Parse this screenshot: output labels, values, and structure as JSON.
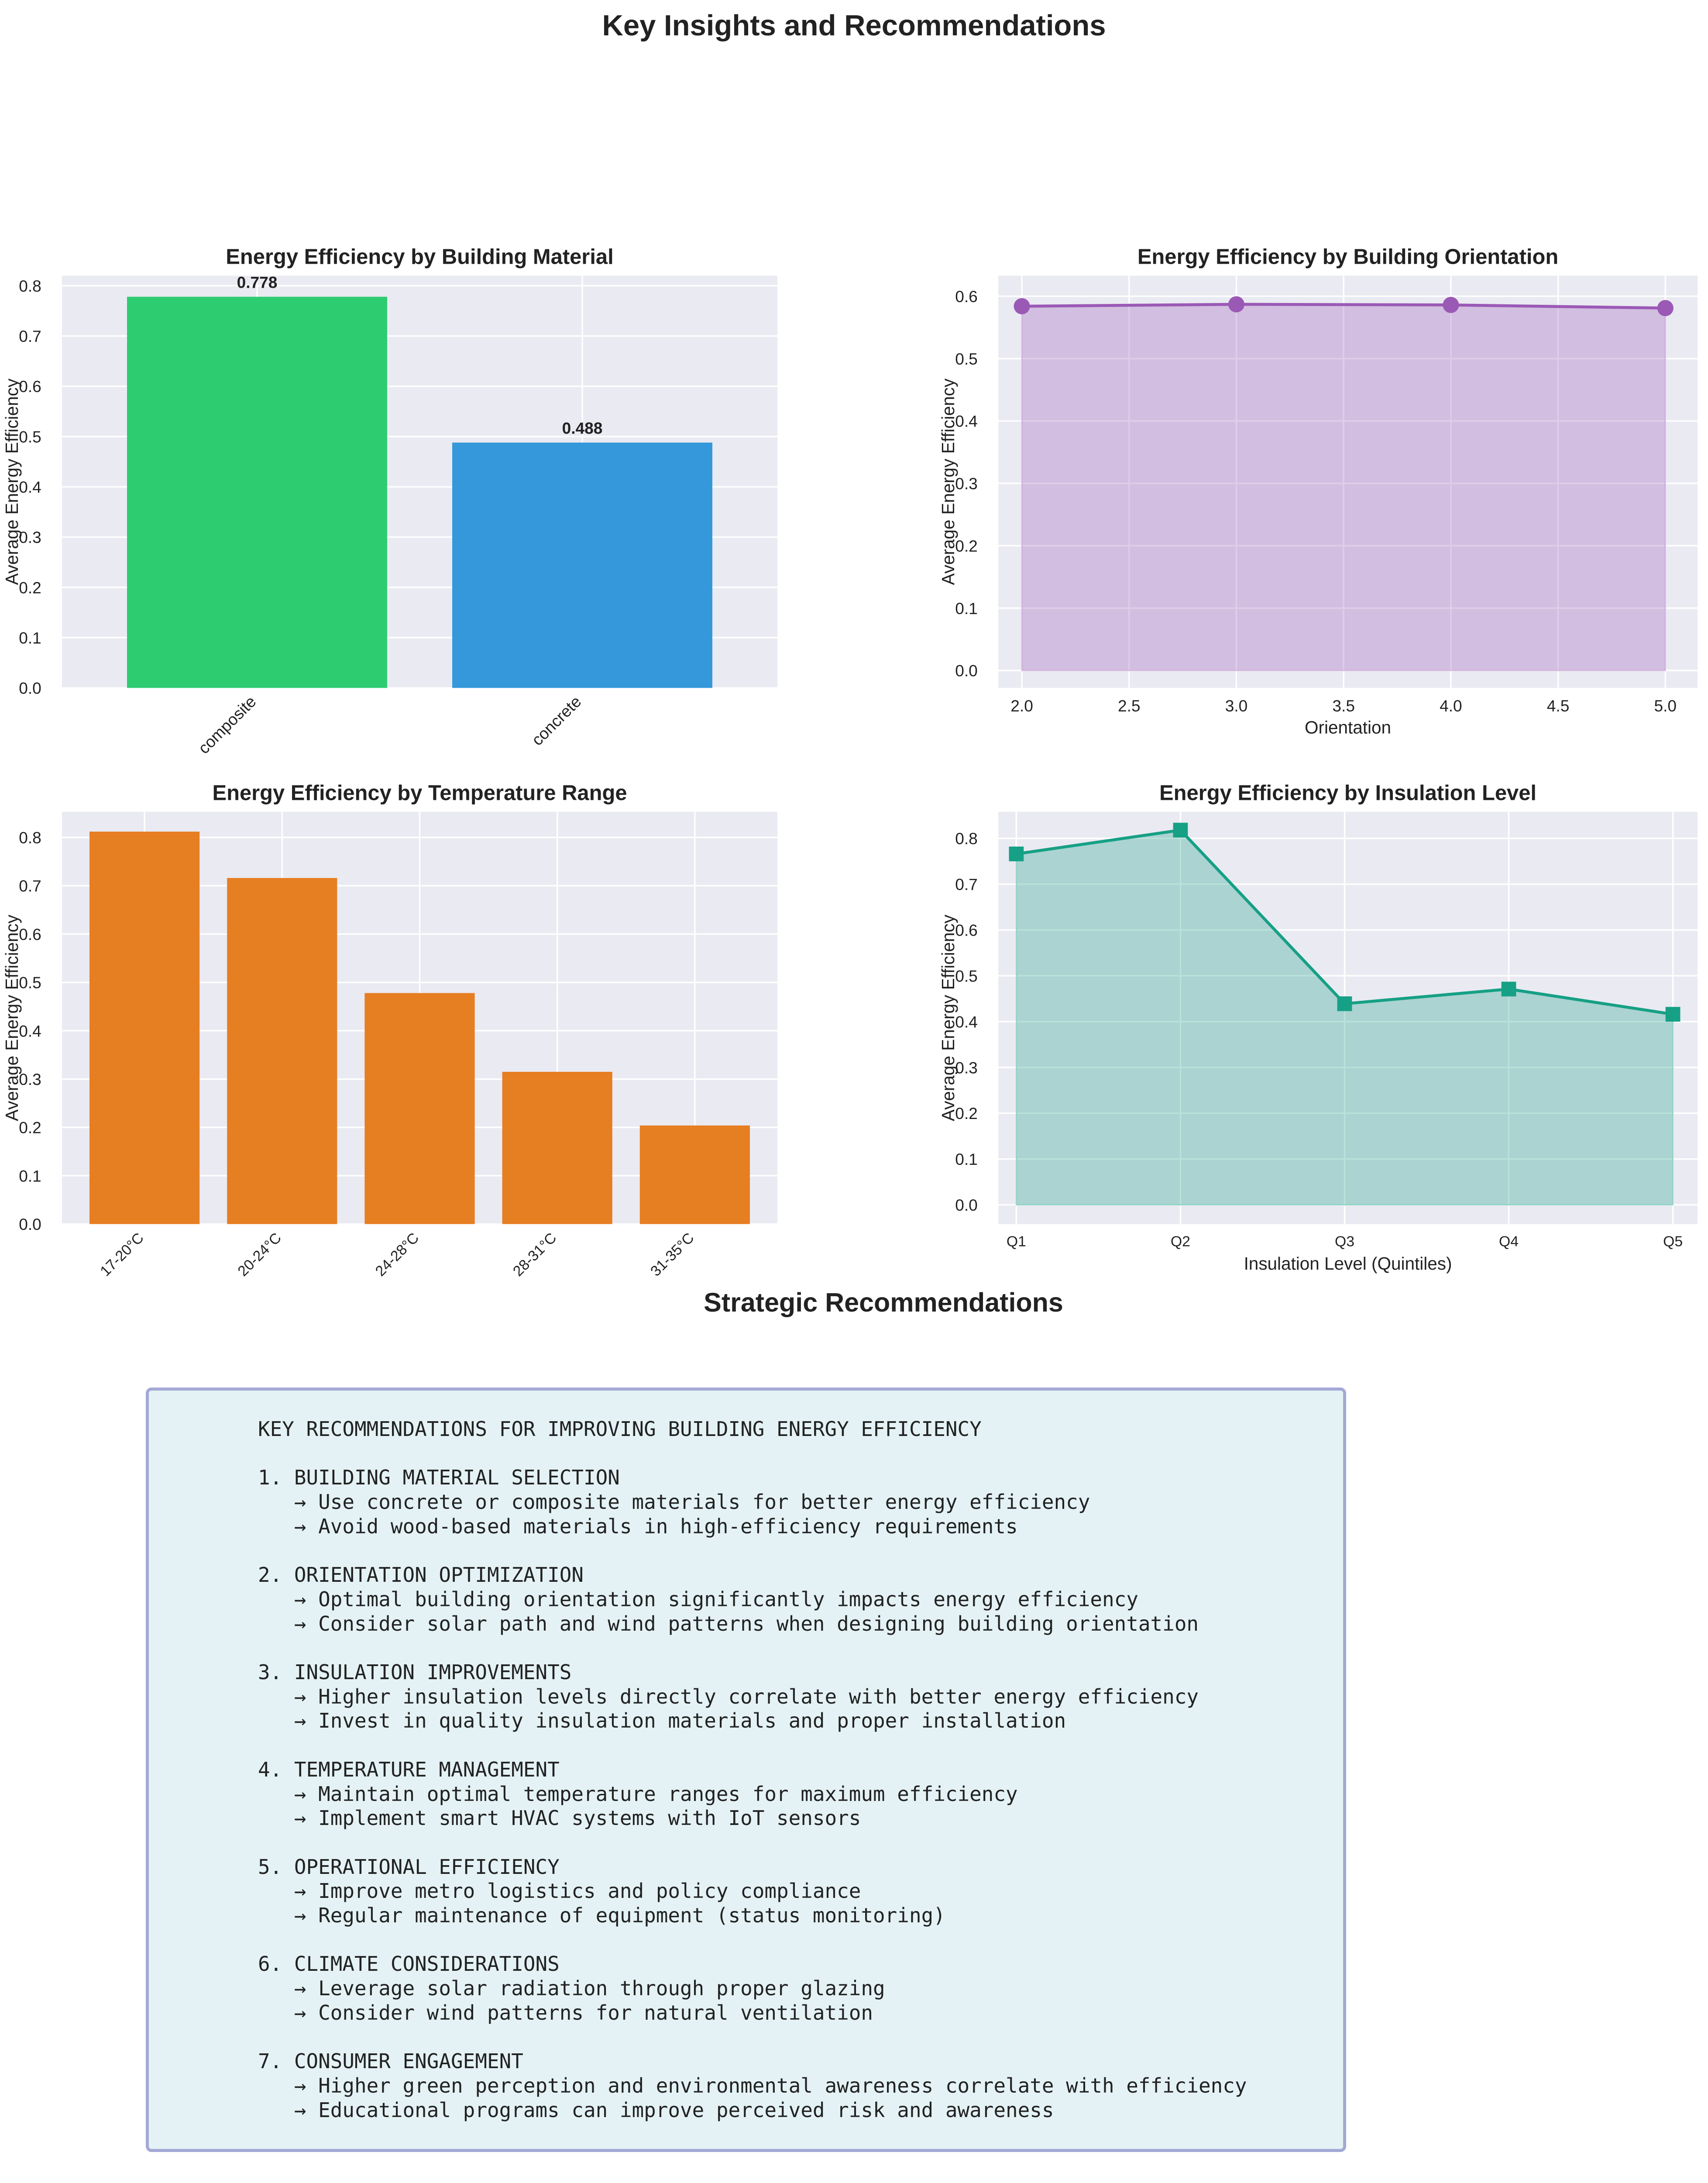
{
  "title": "Key Insights and Recommendations",
  "chart_data": [
    {
      "id": "material",
      "type": "bar",
      "title": "Energy Efficiency by Building Material",
      "xlabel": "",
      "ylabel": "Average Energy Efficiency",
      "categories": [
        "composite",
        "concrete"
      ],
      "values": [
        0.778,
        0.488
      ],
      "data_labels": [
        "0.778",
        "0.488"
      ],
      "colors": [
        "#2ecc71",
        "#3498db"
      ],
      "ylim": [
        0,
        0.82
      ],
      "yticks": [
        "0.0",
        "0.1",
        "0.2",
        "0.3",
        "0.4",
        "0.5",
        "0.6",
        "0.7",
        "0.8"
      ],
      "xtick_rotation": 45,
      "grid": true
    },
    {
      "id": "orientation",
      "type": "area",
      "title": "Energy Efficiency by Building Orientation",
      "xlabel": "Orientation",
      "ylabel": "Average Energy Efficiency",
      "x": [
        2,
        3,
        4,
        5
      ],
      "values": [
        0.584,
        0.587,
        0.586,
        0.581
      ],
      "color": "#9b59b6",
      "marker": "circle",
      "xlim": [
        1.89,
        5.15
      ],
      "ylim": [
        -0.028,
        0.633
      ],
      "xticks": [
        "2.0",
        "2.5",
        "3.0",
        "3.5",
        "4.0",
        "4.5",
        "5.0"
      ],
      "yticks": [
        "0.0",
        "0.1",
        "0.2",
        "0.3",
        "0.4",
        "0.5",
        "0.6"
      ],
      "grid": true
    },
    {
      "id": "temperature",
      "type": "bar",
      "title": "Energy Efficiency by Temperature Range",
      "xlabel": "",
      "ylabel": "Average Energy Efficiency",
      "categories": [
        "17-20°C",
        "20-24°C",
        "24-28°C",
        "28-31°C",
        "31-35°C"
      ],
      "values": [
        0.812,
        0.716,
        0.478,
        0.315,
        0.204
      ],
      "colors": [
        "#e67e22",
        "#e67e22",
        "#e67e22",
        "#e67e22",
        "#e67e22"
      ],
      "ylim": [
        0,
        0.853
      ],
      "yticks": [
        "0.0",
        "0.1",
        "0.2",
        "0.3",
        "0.4",
        "0.5",
        "0.6",
        "0.7",
        "0.8"
      ],
      "xtick_rotation": 45,
      "grid": true
    },
    {
      "id": "insulation",
      "type": "area",
      "title": "Energy Efficiency by Insulation Level",
      "xlabel": "Insulation Level (Quintiles)",
      "ylabel": "Average Energy Efficiency",
      "categories": [
        "Q1",
        "Q2",
        "Q3",
        "Q4",
        "Q5"
      ],
      "values": [
        0.766,
        0.818,
        0.439,
        0.471,
        0.416
      ],
      "color": "#16a085",
      "marker": "square",
      "ylim": [
        -0.042,
        0.858
      ],
      "yticks": [
        "0.0",
        "0.1",
        "0.2",
        "0.3",
        "0.4",
        "0.5",
        "0.6",
        "0.7",
        "0.8"
      ],
      "grid": true
    }
  ],
  "recommendations": {
    "heading": "Strategic Recommendations",
    "text": "KEY RECOMMENDATIONS FOR IMPROVING BUILDING ENERGY EFFICIENCY\n\n1. BUILDING MATERIAL SELECTION\n   → Use concrete or composite materials for better energy efficiency\n   → Avoid wood-based materials in high-efficiency requirements\n\n2. ORIENTATION OPTIMIZATION\n   → Optimal building orientation significantly impacts energy efficiency\n   → Consider solar path and wind patterns when designing building orientation\n\n3. INSULATION IMPROVEMENTS\n   → Higher insulation levels directly correlate with better energy efficiency\n   → Invest in quality insulation materials and proper installation\n\n4. TEMPERATURE MANAGEMENT\n   → Maintain optimal temperature ranges for maximum efficiency\n   → Implement smart HVAC systems with IoT sensors\n\n5. OPERATIONAL EFFICIENCY\n   → Improve metro logistics and policy compliance\n   → Regular maintenance of equipment (status monitoring)\n\n6. CLIMATE CONSIDERATIONS\n   → Leverage solar radiation through proper glazing\n   → Consider wind patterns for natural ventilation\n\n7. CONSUMER ENGAGEMENT\n   → Higher green perception and environmental awareness correlate with efficiency\n   → Educational programs can improve perceived risk and awareness"
  }
}
